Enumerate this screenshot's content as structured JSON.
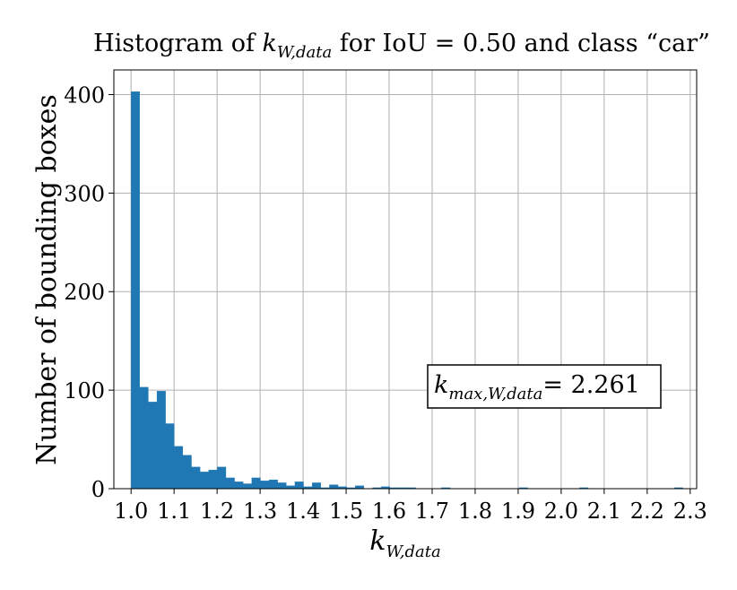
{
  "chart_data": {
    "type": "bar",
    "title_parts": {
      "prefix": "Histogram of ",
      "var_main": "k",
      "var_sub": "W,data",
      "suffix": " for IoU = 0.50 and class “car”"
    },
    "xlabel": {
      "main": "k",
      "sub": "W,data"
    },
    "ylabel": "Number of bounding boxes",
    "xlim": [
      0.96,
      2.315
    ],
    "ylim": [
      0,
      425
    ],
    "xticks": [
      "1.0",
      "1.1",
      "1.2",
      "1.3",
      "1.4",
      "1.5",
      "1.6",
      "1.7",
      "1.8",
      "1.9",
      "2.0",
      "2.1",
      "2.2",
      "2.3"
    ],
    "yticks": [
      "0",
      "100",
      "200",
      "300",
      "400"
    ],
    "grid": true,
    "bin_start": 1.0,
    "bin_width": 0.02005,
    "values": [
      403,
      103,
      88,
      99,
      66,
      43,
      34,
      22,
      17,
      19,
      22,
      11,
      7,
      5,
      11,
      8,
      9,
      6,
      3,
      7,
      2,
      6,
      1,
      4,
      2,
      1,
      3,
      0,
      1,
      2,
      1,
      1,
      1,
      0,
      0,
      0,
      1,
      0,
      0,
      0,
      0,
      0,
      0,
      0,
      0,
      1,
      0,
      0,
      0,
      0,
      0,
      0,
      1,
      0,
      0,
      0,
      0,
      0,
      0,
      0,
      0,
      0,
      0,
      1
    ],
    "color": "#1f77b4",
    "annotation": {
      "main": "k",
      "sub": "max,W,data",
      "rest": "= 2.261",
      "location": "center-right"
    }
  }
}
